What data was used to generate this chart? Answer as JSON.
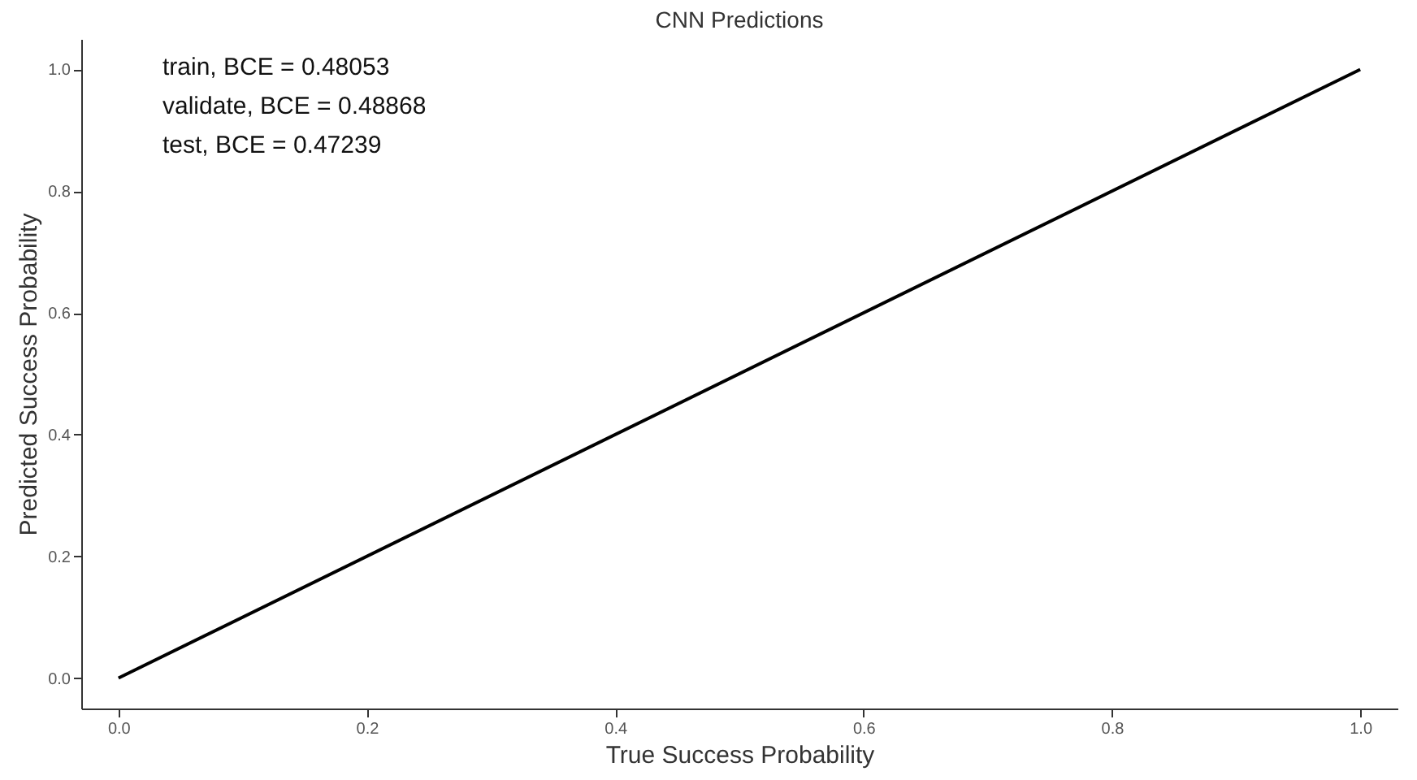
{
  "chart_data": {
    "type": "line",
    "title": "CNN Predictions",
    "xlabel": "True Success Probability",
    "ylabel": "Predicted Success Probability",
    "annotations": [
      "train, BCE = 0.48053",
      "validate, BCE = 0.48868",
      "test, BCE = 0.47239"
    ],
    "x": [
      0,
      1
    ],
    "series": [
      {
        "color": "#000000",
        "values": [
          0,
          1
        ]
      }
    ],
    "xlim": [
      -0.03,
      1.03
    ],
    "ylim": [
      -0.05,
      1.05
    ],
    "xticks": [
      {
        "value": 0,
        "label": "0.0"
      },
      {
        "value": 0.2,
        "label": "0.2"
      },
      {
        "value": 0.4,
        "label": "0.4"
      },
      {
        "value": 0.6,
        "label": "0.6"
      },
      {
        "value": 0.8,
        "label": "0.8"
      },
      {
        "value": 1,
        "label": "1.0"
      }
    ],
    "yticks": [
      {
        "value": 0,
        "label": "0.0"
      },
      {
        "value": 0.2,
        "label": "0.2"
      },
      {
        "value": 0.4,
        "label": "0.4"
      },
      {
        "value": 0.6,
        "label": "0.6"
      },
      {
        "value": 0.8,
        "label": "0.8"
      },
      {
        "value": 1,
        "label": "1.0"
      }
    ],
    "grid": false,
    "legend": false,
    "marker": "none",
    "line_style": "solid"
  }
}
